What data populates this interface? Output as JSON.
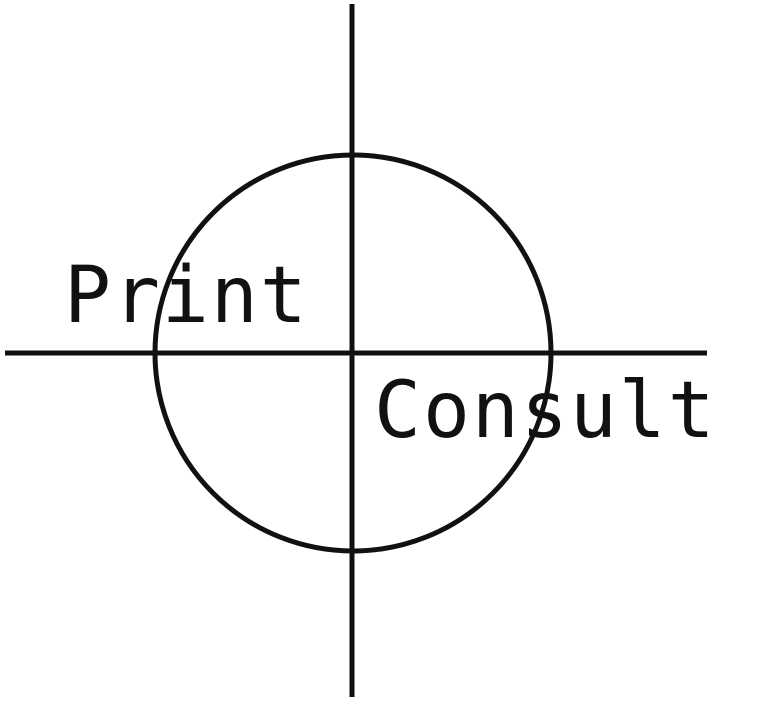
{
  "diagram": {
    "labels": {
      "upper_left": "Print",
      "lower_right": "Consult"
    },
    "ink_color": "#111111",
    "background_color": "#ffffff"
  }
}
